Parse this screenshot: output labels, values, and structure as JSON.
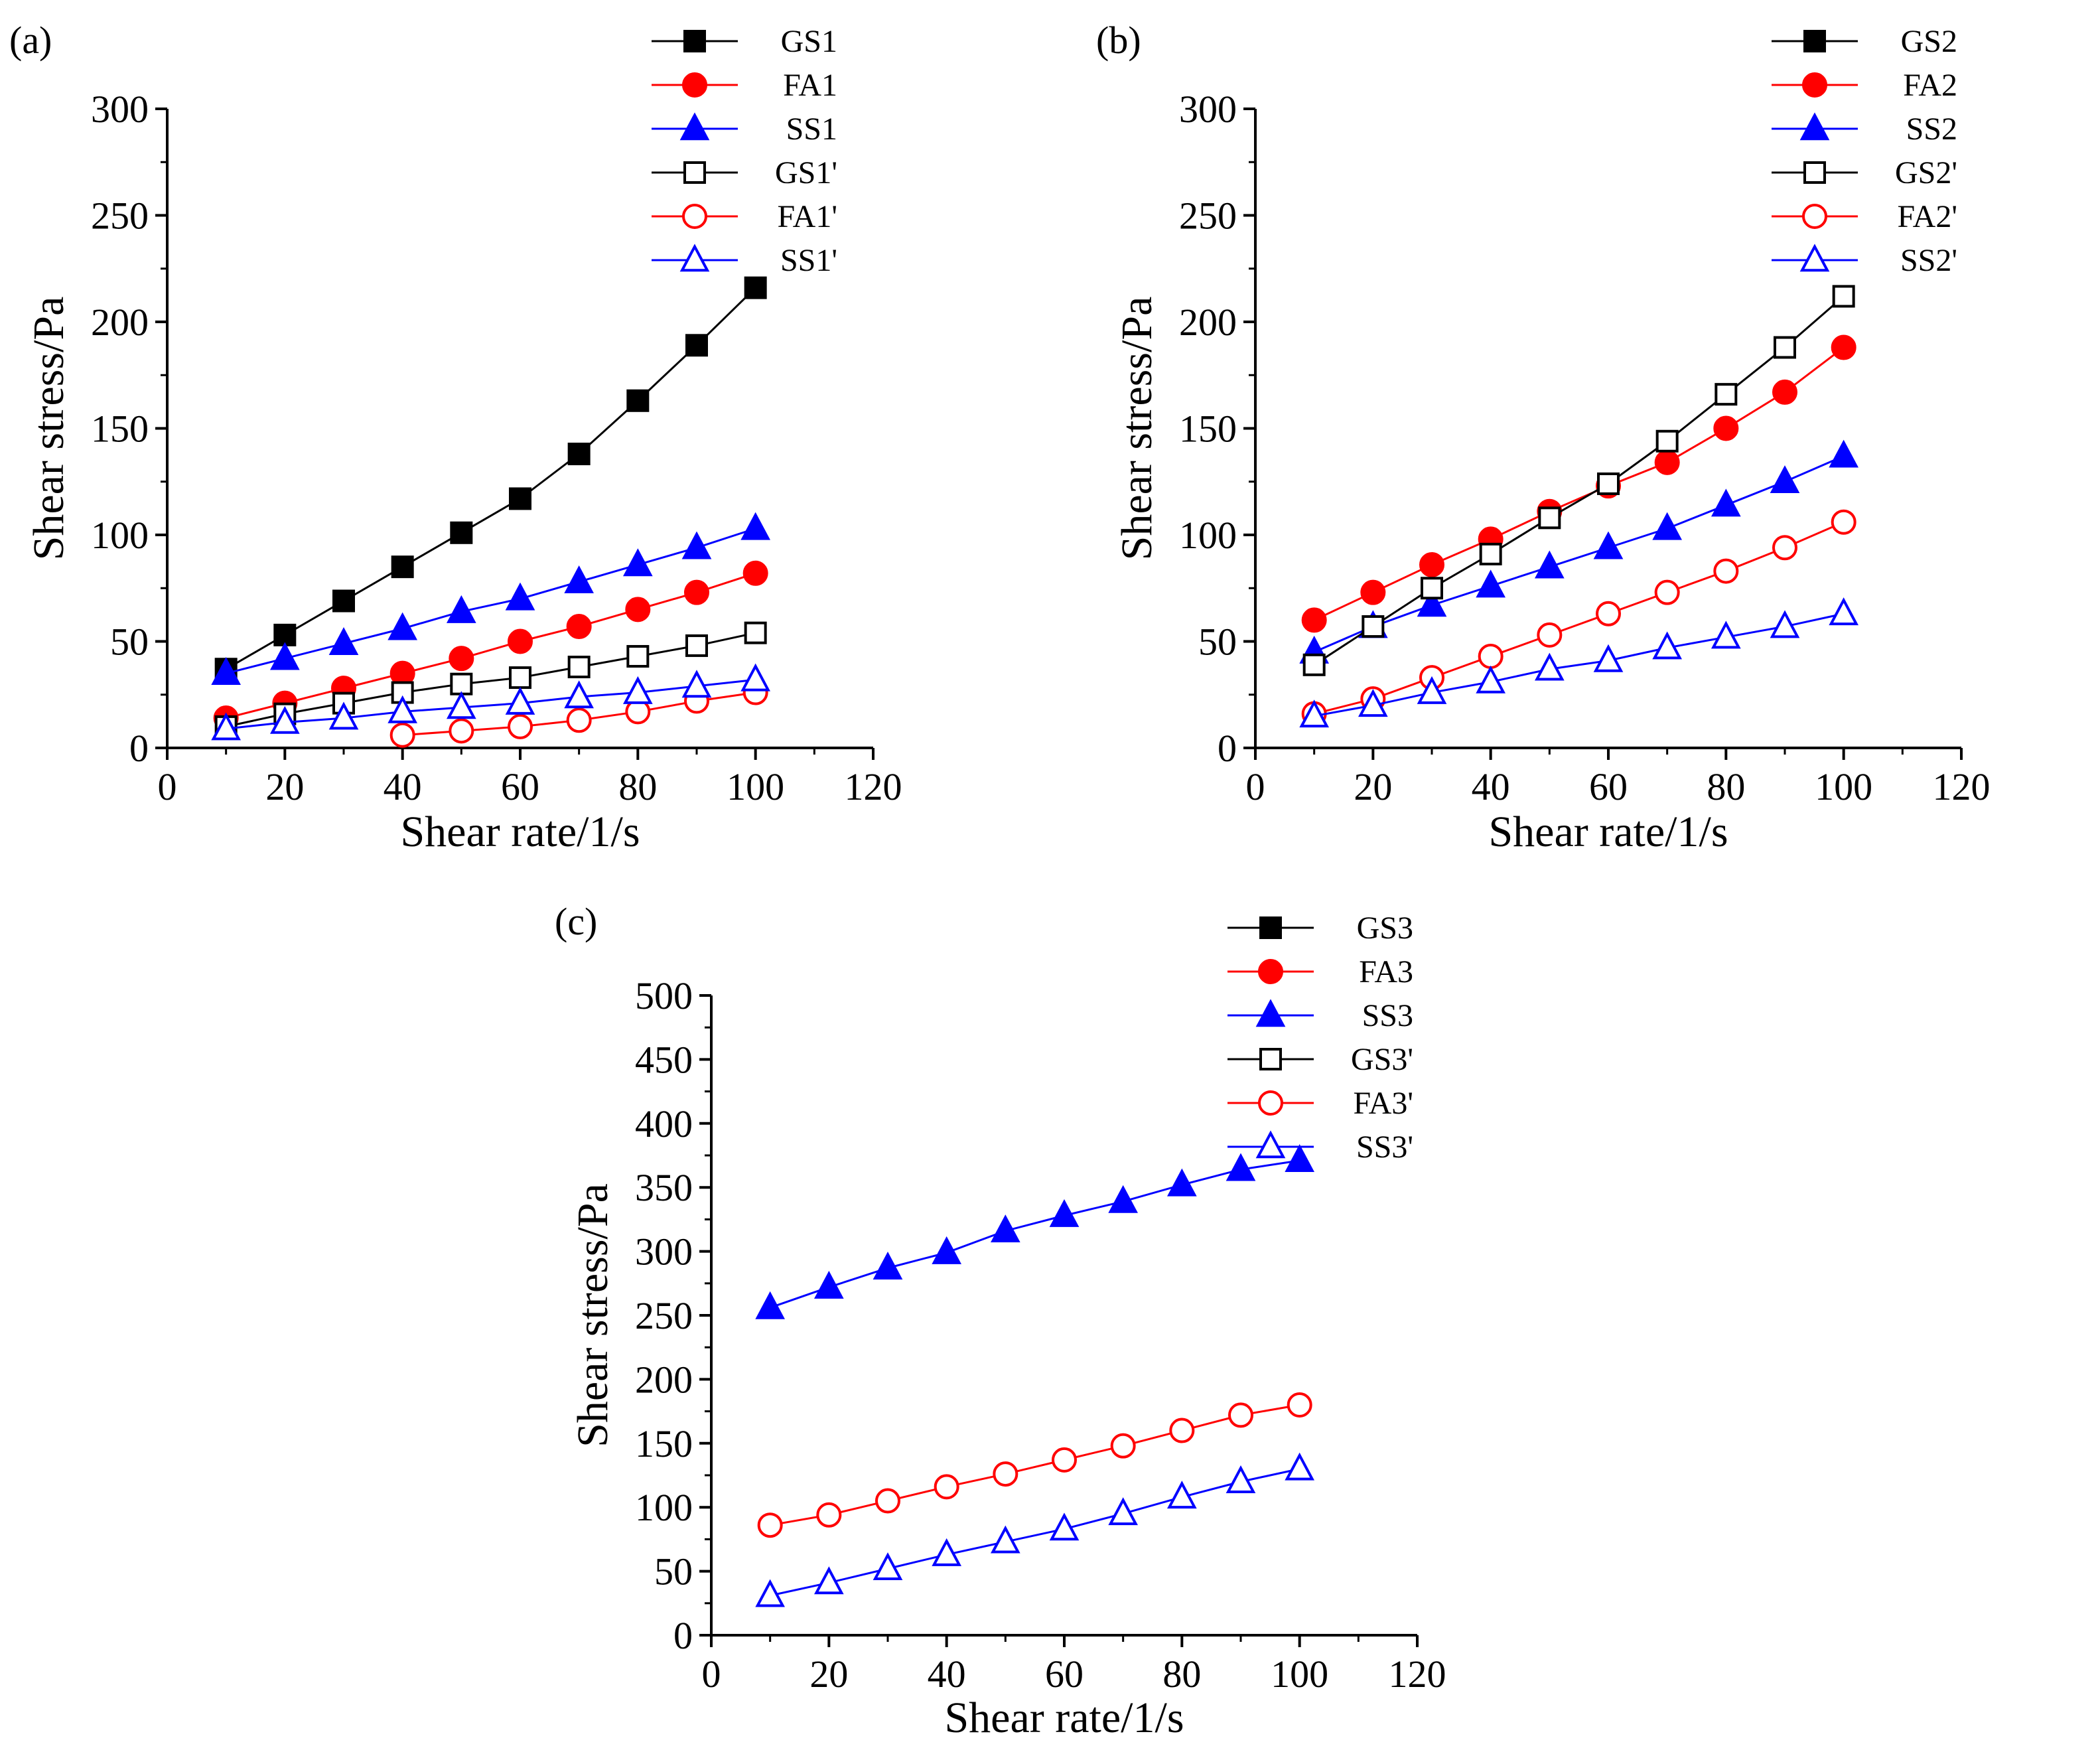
{
  "chart_data": [
    {
      "type": "line",
      "panel_label": "(a)",
      "xlabel": "Shear rate/1/s",
      "ylabel": "Shear stress/Pa",
      "xlim": [
        0,
        120
      ],
      "ylim": [
        0,
        300
      ],
      "xticks": [
        "0",
        "20",
        "40",
        "60",
        "80",
        "100",
        "120"
      ],
      "yticks": [
        "0",
        "50",
        "100",
        "150",
        "200",
        "250",
        "300"
      ],
      "grid": false,
      "legend_position": "top-right",
      "series": [
        {
          "name": "GS1",
          "color": "#000000",
          "marker": "square",
          "filled": true,
          "x": [
            10,
            20,
            30,
            40,
            50,
            60,
            70,
            80,
            90,
            100
          ],
          "values": [
            37,
            53,
            69,
            85,
            101,
            117,
            138,
            163,
            189,
            216
          ]
        },
        {
          "name": "FA1",
          "color": "#ff0000",
          "marker": "circle",
          "filled": true,
          "x": [
            10,
            20,
            30,
            40,
            50,
            60,
            70,
            80,
            90,
            100
          ],
          "values": [
            14,
            21,
            28,
            35,
            42,
            50,
            57,
            65,
            73,
            82
          ]
        },
        {
          "name": "SS1",
          "color": "#0000ff",
          "marker": "triangle",
          "filled": true,
          "x": [
            10,
            20,
            30,
            40,
            50,
            60,
            70,
            80,
            90,
            100
          ],
          "values": [
            35,
            42,
            49,
            56,
            64,
            70,
            78,
            86,
            94,
            103
          ]
        },
        {
          "name": "GS1'",
          "color": "#000000",
          "marker": "square",
          "filled": false,
          "x": [
            10,
            20,
            30,
            40,
            50,
            60,
            70,
            80,
            90,
            100
          ],
          "values": [
            10,
            16,
            21,
            26,
            30,
            33,
            38,
            43,
            48,
            54
          ]
        },
        {
          "name": "FA1'",
          "color": "#ff0000",
          "marker": "circle",
          "filled": false,
          "x": [
            40,
            50,
            60,
            70,
            80,
            90,
            100
          ],
          "values": [
            6,
            8,
            10,
            13,
            17,
            22,
            26
          ]
        },
        {
          "name": "SS1'",
          "color": "#0000ff",
          "marker": "triangle",
          "filled": false,
          "x": [
            10,
            20,
            30,
            40,
            50,
            60,
            70,
            80,
            90,
            100
          ],
          "values": [
            9,
            12,
            14,
            17,
            19,
            21,
            24,
            26,
            29,
            32
          ]
        }
      ]
    },
    {
      "type": "line",
      "panel_label": "(b)",
      "xlabel": "Shear rate/1/s",
      "ylabel": "Shear stress/Pa",
      "xlim": [
        0,
        120
      ],
      "ylim": [
        0,
        300
      ],
      "xticks": [
        "0",
        "20",
        "40",
        "60",
        "80",
        "100",
        "120"
      ],
      "yticks": [
        "0",
        "50",
        "100",
        "150",
        "200",
        "250",
        "300"
      ],
      "grid": false,
      "legend_position": "top-right",
      "series": [
        {
          "name": "GS2",
          "color": "#000000",
          "marker": "square",
          "filled": true,
          "x": [],
          "values": []
        },
        {
          "name": "FA2",
          "color": "#ff0000",
          "marker": "circle",
          "filled": true,
          "x": [
            10,
            20,
            30,
            40,
            50,
            60,
            70,
            80,
            90,
            100
          ],
          "values": [
            60,
            73,
            86,
            98,
            111,
            123,
            134,
            150,
            167,
            188
          ]
        },
        {
          "name": "SS2",
          "color": "#0000ff",
          "marker": "triangle",
          "filled": true,
          "x": [
            10,
            20,
            30,
            40,
            50,
            60,
            70,
            80,
            90,
            100
          ],
          "values": [
            45,
            57,
            67,
            76,
            85,
            94,
            103,
            114,
            125,
            137
          ]
        },
        {
          "name": "GS2'",
          "color": "#000000",
          "marker": "square",
          "filled": false,
          "x": [
            10,
            20,
            30,
            40,
            50,
            60,
            70,
            80,
            90,
            100
          ],
          "values": [
            39,
            57,
            75,
            91,
            108,
            124,
            144,
            166,
            188,
            212
          ]
        },
        {
          "name": "FA2'",
          "color": "#ff0000",
          "marker": "circle",
          "filled": false,
          "x": [
            10,
            20,
            30,
            40,
            50,
            60,
            70,
            80,
            90,
            100
          ],
          "values": [
            16,
            23,
            33,
            43,
            53,
            63,
            73,
            83,
            94,
            106
          ]
        },
        {
          "name": "SS2'",
          "color": "#0000ff",
          "marker": "triangle",
          "filled": false,
          "x": [
            10,
            20,
            30,
            40,
            50,
            60,
            70,
            80,
            90,
            100
          ],
          "values": [
            15,
            20,
            26,
            31,
            37,
            41,
            47,
            52,
            57,
            63
          ]
        }
      ]
    },
    {
      "type": "line",
      "panel_label": "(c)",
      "xlabel": "Shear rate/1/s",
      "ylabel": "Shear stress/Pa",
      "xlim": [
        0,
        120
      ],
      "ylim": [
        0,
        500
      ],
      "xticks": [
        "0",
        "20",
        "40",
        "60",
        "80",
        "100",
        "120"
      ],
      "yticks": [
        "0",
        "50",
        "100",
        "150",
        "200",
        "250",
        "300",
        "350",
        "400",
        "450",
        "500"
      ],
      "grid": false,
      "legend_position": "top-right",
      "series": [
        {
          "name": "GS3",
          "color": "#000000",
          "marker": "square",
          "filled": true,
          "x": [],
          "values": []
        },
        {
          "name": "FA3",
          "color": "#ff0000",
          "marker": "circle",
          "filled": true,
          "x": [],
          "values": []
        },
        {
          "name": "SS3",
          "color": "#0000ff",
          "marker": "triangle",
          "filled": true,
          "x": [
            10,
            20,
            30,
            40,
            50,
            60,
            70,
            80,
            90,
            100
          ],
          "values": [
            256,
            272,
            287,
            299,
            316,
            328,
            339,
            352,
            364,
            371
          ]
        },
        {
          "name": "GS3'",
          "color": "#000000",
          "marker": "square",
          "filled": false,
          "x": [],
          "values": []
        },
        {
          "name": "FA3'",
          "color": "#ff0000",
          "marker": "circle",
          "filled": false,
          "x": [
            10,
            20,
            30,
            40,
            50,
            60,
            70,
            80,
            90,
            100
          ],
          "values": [
            86,
            94,
            105,
            116,
            126,
            137,
            148,
            160,
            172,
            180
          ]
        },
        {
          "name": "SS3'",
          "color": "#0000ff",
          "marker": "triangle",
          "filled": false,
          "x": [
            10,
            20,
            30,
            40,
            50,
            60,
            70,
            80,
            90,
            100
          ],
          "values": [
            31,
            41,
            52,
            63,
            73,
            83,
            95,
            108,
            120,
            130
          ]
        }
      ]
    }
  ]
}
